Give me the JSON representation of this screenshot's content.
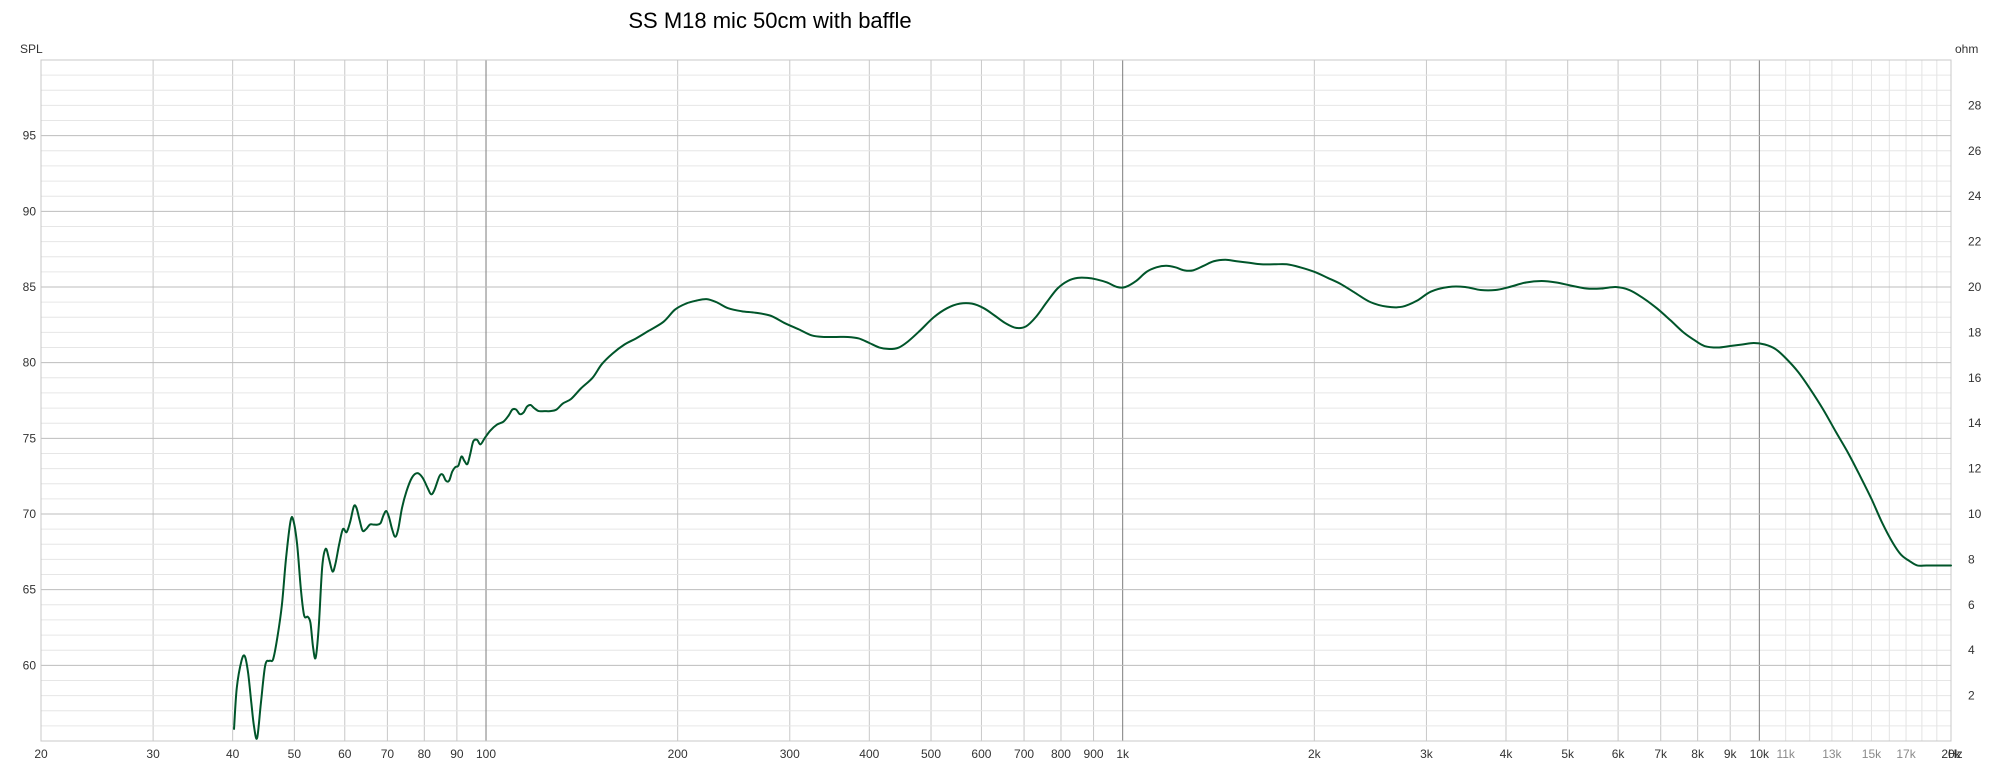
{
  "chart_data": {
    "type": "line",
    "title": "SS M18 mic 50cm with baffle",
    "ylabel": "SPL",
    "y2label": "ohm",
    "xunit": "Hz",
    "xscale": "log",
    "xlim": [
      20,
      20000
    ],
    "ylim": [
      55,
      100
    ],
    "y2lim": [
      0,
      30
    ],
    "grid": true,
    "line_color": "#00552a",
    "x_ticks": [
      {
        "value": 20,
        "label": "20"
      },
      {
        "value": 30,
        "label": "30"
      },
      {
        "value": 40,
        "label": "40"
      },
      {
        "value": 50,
        "label": "50"
      },
      {
        "value": 60,
        "label": "60"
      },
      {
        "value": 70,
        "label": "70"
      },
      {
        "value": 80,
        "label": "80"
      },
      {
        "value": 90,
        "label": "90"
      },
      {
        "value": 100,
        "label": "100"
      },
      {
        "value": 200,
        "label": "200"
      },
      {
        "value": 300,
        "label": "300"
      },
      {
        "value": 400,
        "label": "400"
      },
      {
        "value": 500,
        "label": "500"
      },
      {
        "value": 600,
        "label": "600"
      },
      {
        "value": 700,
        "label": "700"
      },
      {
        "value": 800,
        "label": "800"
      },
      {
        "value": 900,
        "label": "900"
      },
      {
        "value": 1000,
        "label": "1k"
      },
      {
        "value": 2000,
        "label": "2k"
      },
      {
        "value": 3000,
        "label": "3k"
      },
      {
        "value": 4000,
        "label": "4k"
      },
      {
        "value": 5000,
        "label": "5k"
      },
      {
        "value": 6000,
        "label": "6k"
      },
      {
        "value": 7000,
        "label": "7k"
      },
      {
        "value": 8000,
        "label": "8k"
      },
      {
        "value": 9000,
        "label": "9k"
      },
      {
        "value": 10000,
        "label": "10k"
      },
      {
        "value": 11000,
        "label": "11k",
        "minor": true
      },
      {
        "value": 13000,
        "label": "13k",
        "minor": true
      },
      {
        "value": 15000,
        "label": "15k",
        "minor": true
      },
      {
        "value": 17000,
        "label": "17k",
        "minor": true
      },
      {
        "value": 20000,
        "label": "20k"
      }
    ],
    "y_ticks": [
      {
        "value": 60,
        "label": "60"
      },
      {
        "value": 65,
        "label": "65"
      },
      {
        "value": 70,
        "label": "70"
      },
      {
        "value": 75,
        "label": "75"
      },
      {
        "value": 80,
        "label": "80"
      },
      {
        "value": 85,
        "label": "85"
      },
      {
        "value": 90,
        "label": "90"
      },
      {
        "value": 95,
        "label": "95"
      }
    ],
    "y2_ticks": [
      {
        "value": 2,
        "label": "2"
      },
      {
        "value": 4,
        "label": "4"
      },
      {
        "value": 6,
        "label": "6"
      },
      {
        "value": 8,
        "label": "8"
      },
      {
        "value": 10,
        "label": "10"
      },
      {
        "value": 12,
        "label": "12"
      },
      {
        "value": 14,
        "label": "14"
      },
      {
        "value": 16,
        "label": "16"
      },
      {
        "value": 18,
        "label": "18"
      },
      {
        "value": 20,
        "label": "20"
      },
      {
        "value": 22,
        "label": "22"
      },
      {
        "value": 24,
        "label": "24"
      },
      {
        "value": 26,
        "label": "26"
      },
      {
        "value": 28,
        "label": "28"
      }
    ],
    "series": [
      {
        "points": [
          [
            40.2,
            55.8
          ],
          [
            40.6,
            58.5
          ],
          [
            41.3,
            60.3
          ],
          [
            41.8,
            60.6
          ],
          [
            42.3,
            59.5
          ],
          [
            42.8,
            57.5
          ],
          [
            43.2,
            56.0
          ],
          [
            43.7,
            55.2
          ],
          [
            44.3,
            57.5
          ],
          [
            45.0,
            60.0
          ],
          [
            45.7,
            60.3
          ],
          [
            46.3,
            60.4
          ],
          [
            47.0,
            61.8
          ],
          [
            47.8,
            64.0
          ],
          [
            48.5,
            67.0
          ],
          [
            49.3,
            69.5
          ],
          [
            49.8,
            69.6
          ],
          [
            50.5,
            68.0
          ],
          [
            51.2,
            65.0
          ],
          [
            51.8,
            63.3
          ],
          [
            52.5,
            63.2
          ],
          [
            53.0,
            62.8
          ],
          [
            53.5,
            61.2
          ],
          [
            54.0,
            60.5
          ],
          [
            54.6,
            62.5
          ],
          [
            55.3,
            66.5
          ],
          [
            56.0,
            67.7
          ],
          [
            56.7,
            67.0
          ],
          [
            57.4,
            66.2
          ],
          [
            58.0,
            66.7
          ],
          [
            58.8,
            68.0
          ],
          [
            59.6,
            69.0
          ],
          [
            60.4,
            68.8
          ],
          [
            61.2,
            69.5
          ],
          [
            62.0,
            70.5
          ],
          [
            62.6,
            70.4
          ],
          [
            63.3,
            69.6
          ],
          [
            64.0,
            68.9
          ],
          [
            64.8,
            69.0
          ],
          [
            65.7,
            69.3
          ],
          [
            66.6,
            69.3
          ],
          [
            67.5,
            69.3
          ],
          [
            68.3,
            69.4
          ],
          [
            69.0,
            69.9
          ],
          [
            69.7,
            70.2
          ],
          [
            70.4,
            69.8
          ],
          [
            71.2,
            69.0
          ],
          [
            72.0,
            68.5
          ],
          [
            72.8,
            69.0
          ],
          [
            73.8,
            70.4
          ],
          [
            75.0,
            71.5
          ],
          [
            76.5,
            72.4
          ],
          [
            78.0,
            72.7
          ],
          [
            79.5,
            72.4
          ],
          [
            81.0,
            71.7
          ],
          [
            82.0,
            71.3
          ],
          [
            83.0,
            71.6
          ],
          [
            84.5,
            72.5
          ],
          [
            85.5,
            72.6
          ],
          [
            86.5,
            72.2
          ],
          [
            87.5,
            72.2
          ],
          [
            88.5,
            72.8
          ],
          [
            89.5,
            73.1
          ],
          [
            90.5,
            73.2
          ],
          [
            91.5,
            73.8
          ],
          [
            92.5,
            73.5
          ],
          [
            93.5,
            73.3
          ],
          [
            94.5,
            74.0
          ],
          [
            95.5,
            74.8
          ],
          [
            96.8,
            74.9
          ],
          [
            98.0,
            74.6
          ],
          [
            99.5,
            75.0
          ],
          [
            101.5,
            75.5
          ],
          [
            104,
            75.9
          ],
          [
            106.5,
            76.1
          ],
          [
            108.5,
            76.5
          ],
          [
            110,
            76.9
          ],
          [
            111.5,
            76.9
          ],
          [
            113,
            76.6
          ],
          [
            114.5,
            76.7
          ],
          [
            116,
            77.1
          ],
          [
            117.5,
            77.2
          ],
          [
            119,
            77.0
          ],
          [
            121,
            76.8
          ],
          [
            123.5,
            76.8
          ],
          [
            126,
            76.8
          ],
          [
            129,
            76.9
          ],
          [
            132,
            77.3
          ],
          [
            136,
            77.6
          ],
          [
            141,
            78.3
          ],
          [
            147,
            79.0
          ],
          [
            152,
            79.9
          ],
          [
            158,
            80.6
          ],
          [
            165,
            81.2
          ],
          [
            172,
            81.6
          ],
          [
            180,
            82.1
          ],
          [
            190,
            82.7
          ],
          [
            198,
            83.5
          ],
          [
            206,
            83.9
          ],
          [
            214,
            84.1
          ],
          [
            222,
            84.2
          ],
          [
            230,
            84.0
          ],
          [
            240,
            83.6
          ],
          [
            252,
            83.4
          ],
          [
            265,
            83.3
          ],
          [
            280,
            83.1
          ],
          [
            295,
            82.6
          ],
          [
            310,
            82.2
          ],
          [
            325,
            81.8
          ],
          [
            340,
            81.7
          ],
          [
            355,
            81.7
          ],
          [
            370,
            81.7
          ],
          [
            385,
            81.6
          ],
          [
            400,
            81.3
          ],
          [
            415,
            81.0
          ],
          [
            430,
            80.9
          ],
          [
            445,
            81.0
          ],
          [
            460,
            81.4
          ],
          [
            480,
            82.1
          ],
          [
            505,
            83.0
          ],
          [
            530,
            83.6
          ],
          [
            555,
            83.9
          ],
          [
            580,
            83.9
          ],
          [
            605,
            83.6
          ],
          [
            630,
            83.1
          ],
          [
            655,
            82.6
          ],
          [
            680,
            82.3
          ],
          [
            705,
            82.4
          ],
          [
            730,
            83.0
          ],
          [
            760,
            84.0
          ],
          [
            790,
            84.9
          ],
          [
            820,
            85.4
          ],
          [
            850,
            85.6
          ],
          [
            880,
            85.6
          ],
          [
            910,
            85.5
          ],
          [
            945,
            85.3
          ],
          [
            980,
            85.0
          ],
          [
            1010,
            85.0
          ],
          [
            1050,
            85.4
          ],
          [
            1090,
            86.0
          ],
          [
            1130,
            86.3
          ],
          [
            1170,
            86.4
          ],
          [
            1210,
            86.3
          ],
          [
            1250,
            86.1
          ],
          [
            1290,
            86.1
          ],
          [
            1340,
            86.4
          ],
          [
            1390,
            86.7
          ],
          [
            1450,
            86.8
          ],
          [
            1510,
            86.7
          ],
          [
            1580,
            86.6
          ],
          [
            1650,
            86.5
          ],
          [
            1730,
            86.5
          ],
          [
            1810,
            86.5
          ],
          [
            1900,
            86.3
          ],
          [
            2000,
            86.0
          ],
          [
            2100,
            85.6
          ],
          [
            2200,
            85.2
          ],
          [
            2320,
            84.6
          ],
          [
            2450,
            84.0
          ],
          [
            2600,
            83.7
          ],
          [
            2750,
            83.7
          ],
          [
            2900,
            84.1
          ],
          [
            3050,
            84.7
          ],
          [
            3250,
            85.0
          ],
          [
            3450,
            85.0
          ],
          [
            3650,
            84.8
          ],
          [
            3850,
            84.8
          ],
          [
            4050,
            85.0
          ],
          [
            4300,
            85.3
          ],
          [
            4550,
            85.4
          ],
          [
            4800,
            85.3
          ],
          [
            5050,
            85.1
          ],
          [
            5350,
            84.9
          ],
          [
            5650,
            84.9
          ],
          [
            5950,
            85.0
          ],
          [
            6250,
            84.8
          ],
          [
            6550,
            84.3
          ],
          [
            6900,
            83.6
          ],
          [
            7250,
            82.8
          ],
          [
            7600,
            82.0
          ],
          [
            7900,
            81.5
          ],
          [
            8200,
            81.1
          ],
          [
            8600,
            81.0
          ],
          [
            9000,
            81.1
          ],
          [
            9400,
            81.2
          ],
          [
            9800,
            81.3
          ],
          [
            10200,
            81.2
          ],
          [
            10600,
            80.9
          ],
          [
            11000,
            80.3
          ],
          [
            11500,
            79.4
          ],
          [
            12000,
            78.3
          ],
          [
            12600,
            76.9
          ],
          [
            13200,
            75.4
          ],
          [
            13800,
            74.0
          ],
          [
            14400,
            72.5
          ],
          [
            15000,
            71.0
          ],
          [
            15600,
            69.4
          ],
          [
            16200,
            68.1
          ],
          [
            16700,
            67.3
          ],
          [
            17200,
            66.9
          ],
          [
            17700,
            66.6
          ],
          [
            18300,
            66.6
          ],
          [
            19000,
            66.6
          ],
          [
            20000,
            66.6
          ]
        ]
      }
    ]
  }
}
